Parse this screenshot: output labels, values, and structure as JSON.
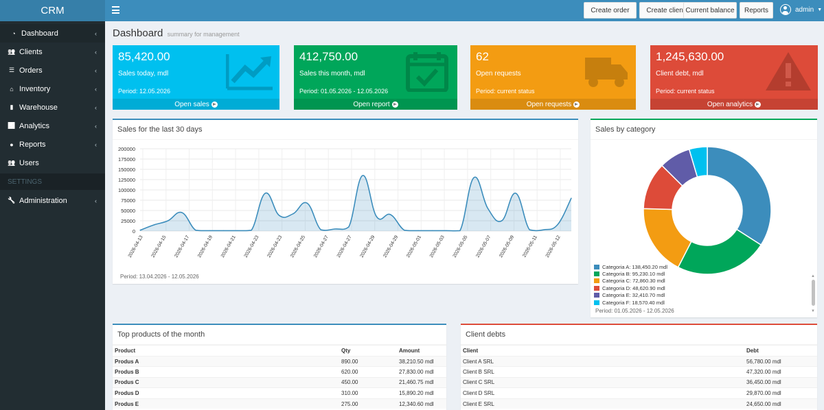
{
  "app": {
    "logo": "CRM"
  },
  "sidebar": {
    "items": [
      {
        "label": "Dashboard",
        "icon": "dashboard-icon",
        "active": true,
        "chevron": "‹"
      },
      {
        "label": "Clients",
        "icon": "users-icon",
        "chevron": "‹"
      },
      {
        "label": "Orders",
        "icon": "list-icon",
        "chevron": "‹"
      },
      {
        "label": "Inventory",
        "icon": "home-icon",
        "chevron": "‹"
      },
      {
        "label": "Warehouse",
        "icon": "file-icon",
        "chevron": "‹"
      },
      {
        "label": "Analytics",
        "icon": "line-chart-icon",
        "chevron": "‹"
      },
      {
        "label": "Reports",
        "icon": "user-icon",
        "chevron": "‹"
      },
      {
        "label": "Users",
        "icon": "users-icon",
        "chevron": ""
      }
    ],
    "settings_header": "SETTINGS",
    "admin": {
      "label": "Administration",
      "icon": "wrench-icon",
      "chevron": "‹"
    }
  },
  "topbar": {
    "buttons": [
      "Create order",
      "Create client",
      "Current balance",
      "Reports"
    ],
    "user": "admin"
  },
  "page": {
    "title": "Dashboard",
    "subtitle": "summary for management"
  },
  "stats": [
    {
      "value": "85,420.00",
      "label": "Sales today, mdl",
      "period": "Period: 12.05.2026",
      "link": "Open sales",
      "color": "#00c0ef",
      "icon": "trend-up-icon"
    },
    {
      "value": "412,750.00",
      "label": "Sales this month, mdl",
      "period": "Period: 01.05.2026 - 12.05.2026",
      "link": "Open report",
      "color": "#00a65a",
      "icon": "calendar-check-icon"
    },
    {
      "value": "62",
      "label": "Open requests",
      "period": "Period: current status",
      "link": "Open requests",
      "color": "#f39c12",
      "icon": "truck-icon"
    },
    {
      "value": "1,245,630.00",
      "label": "Client debt, mdl",
      "period": "Period: current status",
      "link": "Open analytics",
      "color": "#dd4b39",
      "icon": "warning-icon"
    }
  ],
  "sales_box": {
    "title": "Sales for the last 30 days",
    "period": "Period: 13.04.2026 - 12.05.2026"
  },
  "category_box": {
    "title": "Sales by category",
    "period": "Period: 01.05.2026 - 12.05.2026"
  },
  "chart_data": [
    {
      "type": "area",
      "title": "Sales for the last 30 days",
      "xlabel": "",
      "ylabel": "",
      "ylim": [
        0,
        200000
      ],
      "yticks": [
        "200000",
        "175000",
        "150000",
        "125000",
        "100000",
        "75000",
        "50000",
        "25000",
        "0"
      ],
      "xticks": [
        "2026-04-13",
        "2026-04-15",
        "2026-04-17",
        "2026-04-19",
        "2026-04-21",
        "2026-04-23",
        "2026-04-23",
        "2026-04-25",
        "2026-04-27",
        "2026-04-27",
        "2026-04-29",
        "2026-04-29",
        "2026-05-01",
        "2026-05-03",
        "2026-05-05",
        "2026-05-07",
        "2026-05-09",
        "2026-05-11",
        "2026-05-12"
      ],
      "values": [
        2000,
        15000,
        25000,
        45000,
        2000,
        1000,
        1000,
        1000,
        2000,
        92000,
        38000,
        42000,
        68000,
        3000,
        5000,
        10000,
        135000,
        35000,
        40000,
        2000,
        1000,
        1000,
        1000,
        1000,
        130000,
        55000,
        25000,
        92000,
        3000,
        3000,
        15000,
        80000
      ],
      "color": "#3c8dbc",
      "grid": true
    },
    {
      "type": "pie",
      "title": "Sales by category",
      "slices": [
        {
          "label": "Categoria A: 138,450.20 mdl",
          "value": 138450.2,
          "color": "#3c8dbc"
        },
        {
          "label": "Categoria B: 95,230.10 mdl",
          "value": 95230.1,
          "color": "#00a65a"
        },
        {
          "label": "Categoria C: 72,860.30 mdl",
          "value": 72860.3,
          "color": "#f39c12"
        },
        {
          "label": "Categoria D: 48,620.90 mdl",
          "value": 48620.9,
          "color": "#dd4b39"
        },
        {
          "label": "Categoria E: 32,410.70 mdl",
          "value": 32410.7,
          "color": "#605ca8"
        },
        {
          "label": "Categoria F: 18,570.40 mdl",
          "value": 18570.4,
          "color": "#00c0ef"
        }
      ],
      "legend": "bottom-left"
    }
  ],
  "products": {
    "title": "Top products of the month",
    "columns": [
      "Product",
      "Qty",
      "Amount"
    ],
    "rows": [
      [
        "Produs A",
        "890.00",
        "38,210.50 mdl"
      ],
      [
        "Produs B",
        "620.00",
        "27,830.00 mdl"
      ],
      [
        "Produs C",
        "450.00",
        "21,460.75 mdl"
      ],
      [
        "Produs D",
        "310.00",
        "15,890.20 mdl"
      ],
      [
        "Produs E",
        "275.00",
        "12,340.60 mdl"
      ]
    ]
  },
  "debts": {
    "title": "Client debts",
    "columns": [
      "Client",
      "Debt"
    ],
    "rows": [
      [
        "Client A SRL",
        "56,780.00 mdl"
      ],
      [
        "Client B SRL",
        "47,320.00 mdl"
      ],
      [
        "Client C SRL",
        "36,450.00 mdl"
      ],
      [
        "Client D SRL",
        "29,870.00 mdl"
      ],
      [
        "Client E SRL",
        "24,650.00 mdl"
      ]
    ]
  }
}
